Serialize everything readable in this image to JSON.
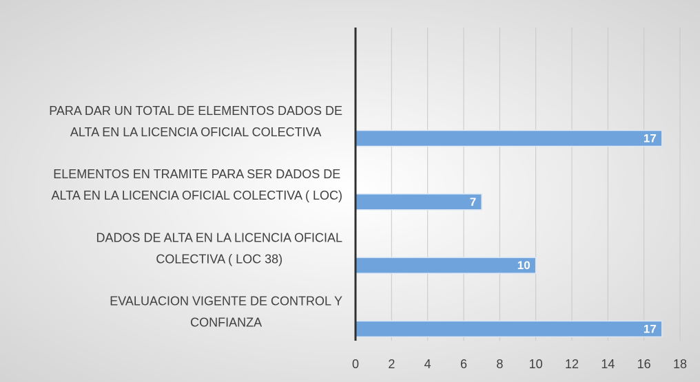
{
  "chart_data": {
    "type": "bar",
    "orientation": "horizontal",
    "categories": [
      [
        "PARA DAR UN TOTAL DE ELEMENTOS DADOS DE",
        "ALTA EN LA LICENCIA OFICIAL COLECTIVA"
      ],
      [
        "ELEMENTOS EN TRAMITE PARA SER DADOS DE",
        "ALTA EN LA LICENCIA OFICIAL COLECTIVA ( LOC)"
      ],
      [
        "DADOS DE ALTA EN LA LICENCIA OFICIAL",
        "COLECTIVA ( LOC 38)"
      ],
      [
        "EVALUACION VIGENTE DE CONTROL Y",
        "CONFIANZA"
      ]
    ],
    "values": [
      17,
      7,
      10,
      17
    ],
    "color": "#6fa3dc",
    "xlim": [
      0,
      18
    ],
    "xticks": [
      0,
      2,
      4,
      6,
      8,
      10,
      12,
      14,
      16,
      18
    ],
    "grid": true,
    "data_labels": true
  }
}
